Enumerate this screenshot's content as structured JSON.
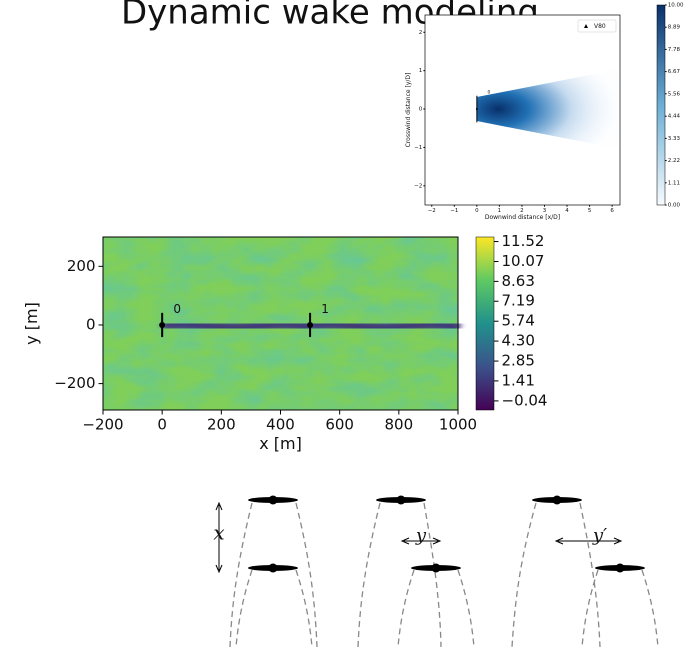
{
  "title": "Dynamic wake modeling",
  "chart_data": [
    {
      "type": "heatmap",
      "xlabel": "Downwind distance [x/D]",
      "ylabel": "Crosswind distance [y/D]",
      "xlim": [
        -2.3,
        6.35
      ],
      "ylim": [
        -2.5,
        2.45
      ],
      "xticks": [
        {
          "value": -2,
          "label": "−2"
        },
        {
          "value": -1,
          "label": "−1"
        },
        0,
        1,
        2,
        3,
        4,
        5,
        6
      ],
      "yticks": [
        {
          "value": -2,
          "label": "−2"
        },
        {
          "value": -1,
          "label": "−1"
        },
        0,
        1,
        2
      ],
      "legend": "V80",
      "legend_position": "upper right",
      "turbine_labels": [
        "0"
      ],
      "turbine_x": [
        0
      ],
      "turbine_y": [
        0
      ],
      "colormap": "Blues",
      "clim": [
        0,
        10
      ],
      "cticks": [
        {
          "value": 10,
          "label": "10.00"
        },
        8.89,
        7.78,
        6.67,
        5.56,
        4.44,
        3.33,
        2.22,
        1.11,
        {
          "value": 0,
          "label": "0.00"
        }
      ]
    },
    {
      "type": "heatmap",
      "xlabel": "x [m]",
      "ylabel": "y [m]",
      "xlim": [
        -200,
        1000
      ],
      "ylim": [
        -290,
        300
      ],
      "xticks": [
        {
          "value": -200,
          "label": "−200"
        },
        0,
        200,
        400,
        600,
        800,
        1000
      ],
      "yticks": [
        {
          "value": -200,
          "label": "−200"
        },
        0,
        200
      ],
      "turbine_labels": [
        "0",
        "1"
      ],
      "turbine_x": [
        0,
        500
      ],
      "turbine_y": [
        0,
        0
      ],
      "colormap": "viridis",
      "clim": [
        -0.7,
        11.85
      ],
      "cticks": [
        11.52,
        10.07,
        8.63,
        7.19,
        5.74,
        {
          "value": 4.3,
          "label": "4.30"
        },
        2.85,
        1.41,
        {
          "value": -0.04,
          "label": "−0.04"
        }
      ]
    }
  ],
  "diagram": {
    "labels": [
      "x",
      "y",
      "y′"
    ]
  }
}
